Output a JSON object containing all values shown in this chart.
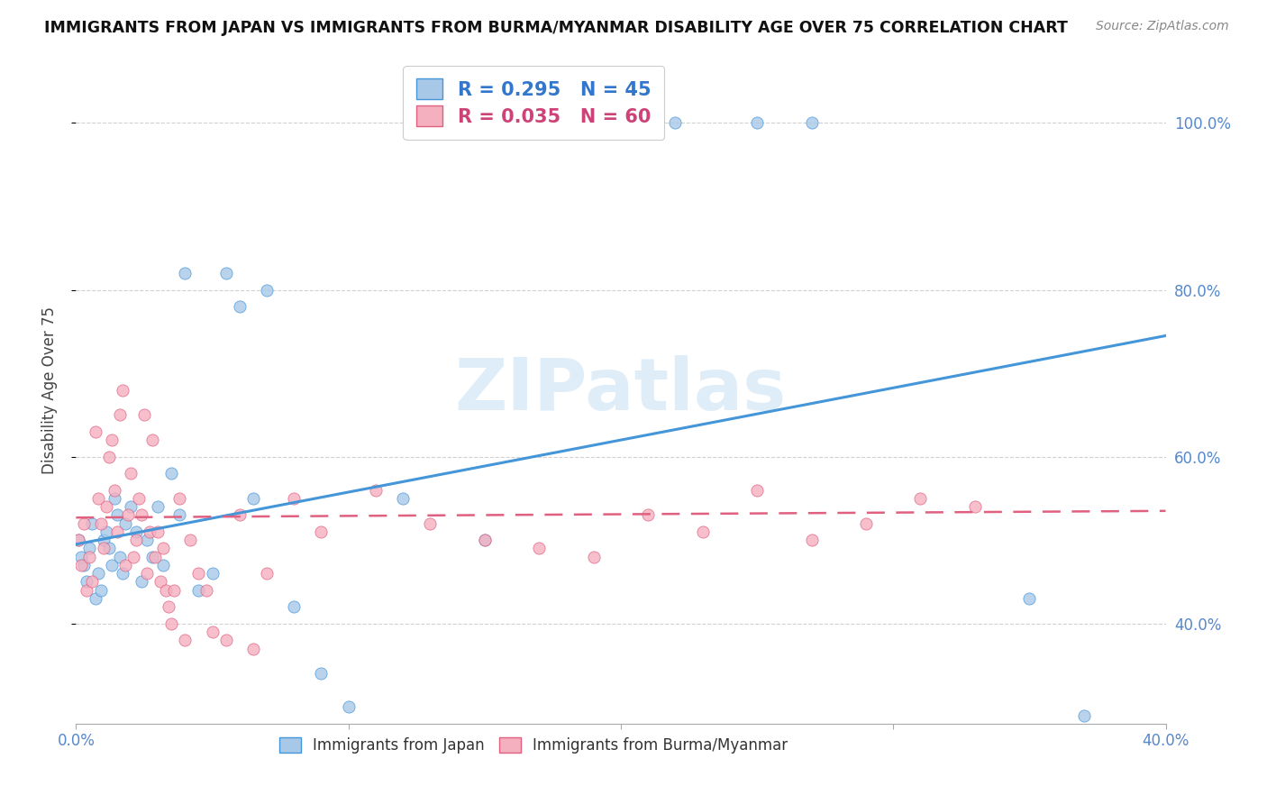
{
  "title": "IMMIGRANTS FROM JAPAN VS IMMIGRANTS FROM BURMA/MYANMAR DISABILITY AGE OVER 75 CORRELATION CHART",
  "source": "Source: ZipAtlas.com",
  "ylabel": "Disability Age Over 75",
  "xlabel_japan": "Immigrants from Japan",
  "xlabel_burma": "Immigrants from Burma/Myanmar",
  "watermark": "ZIPatlas",
  "japan_R": 0.295,
  "japan_N": 45,
  "burma_R": 0.035,
  "burma_N": 60,
  "xlim": [
    0.0,
    0.4
  ],
  "ylim": [
    0.28,
    1.08
  ],
  "japan_color": "#a8c8e8",
  "japan_line_color": "#4496d8",
  "burma_color": "#f5b0c0",
  "burma_line_color": "#e06080",
  "grid_color": "#cccccc",
  "japan_points_x": [
    0.001,
    0.002,
    0.003,
    0.004,
    0.005,
    0.006,
    0.007,
    0.008,
    0.009,
    0.01,
    0.011,
    0.012,
    0.013,
    0.014,
    0.015,
    0.016,
    0.017,
    0.018,
    0.02,
    0.022,
    0.024,
    0.026,
    0.028,
    0.03,
    0.032,
    0.035,
    0.038,
    0.04,
    0.045,
    0.05,
    0.055,
    0.06,
    0.065,
    0.07,
    0.08,
    0.09,
    0.1,
    0.12,
    0.15,
    0.2,
    0.22,
    0.25,
    0.27,
    0.35,
    0.37
  ],
  "japan_points_y": [
    0.5,
    0.48,
    0.47,
    0.45,
    0.49,
    0.52,
    0.43,
    0.46,
    0.44,
    0.5,
    0.51,
    0.49,
    0.47,
    0.55,
    0.53,
    0.48,
    0.46,
    0.52,
    0.54,
    0.51,
    0.45,
    0.5,
    0.48,
    0.54,
    0.47,
    0.58,
    0.53,
    0.82,
    0.44,
    0.46,
    0.82,
    0.78,
    0.55,
    0.8,
    0.42,
    0.34,
    0.3,
    0.55,
    0.5,
    1.0,
    1.0,
    1.0,
    1.0,
    0.43,
    0.29
  ],
  "burma_points_x": [
    0.001,
    0.002,
    0.003,
    0.004,
    0.005,
    0.006,
    0.007,
    0.008,
    0.009,
    0.01,
    0.011,
    0.012,
    0.013,
    0.014,
    0.015,
    0.016,
    0.017,
    0.018,
    0.019,
    0.02,
    0.021,
    0.022,
    0.023,
    0.024,
    0.025,
    0.026,
    0.027,
    0.028,
    0.029,
    0.03,
    0.031,
    0.032,
    0.033,
    0.034,
    0.035,
    0.036,
    0.038,
    0.04,
    0.042,
    0.045,
    0.048,
    0.05,
    0.055,
    0.06,
    0.065,
    0.07,
    0.08,
    0.09,
    0.11,
    0.13,
    0.15,
    0.17,
    0.19,
    0.21,
    0.23,
    0.25,
    0.27,
    0.29,
    0.31,
    0.33
  ],
  "burma_points_y": [
    0.5,
    0.47,
    0.52,
    0.44,
    0.48,
    0.45,
    0.63,
    0.55,
    0.52,
    0.49,
    0.54,
    0.6,
    0.62,
    0.56,
    0.51,
    0.65,
    0.68,
    0.47,
    0.53,
    0.58,
    0.48,
    0.5,
    0.55,
    0.53,
    0.65,
    0.46,
    0.51,
    0.62,
    0.48,
    0.51,
    0.45,
    0.49,
    0.44,
    0.42,
    0.4,
    0.44,
    0.55,
    0.38,
    0.5,
    0.46,
    0.44,
    0.39,
    0.38,
    0.53,
    0.37,
    0.46,
    0.55,
    0.51,
    0.56,
    0.52,
    0.5,
    0.49,
    0.48,
    0.53,
    0.51,
    0.56,
    0.5,
    0.52,
    0.55,
    0.54
  ],
  "ytick_labels": [
    "40.0%",
    "60.0%",
    "80.0%",
    "100.0%"
  ],
  "ytick_values": [
    0.4,
    0.6,
    0.8,
    1.0
  ],
  "xtick_labels": [
    "0.0%",
    "40.0%"
  ],
  "xtick_values": [
    0.0,
    0.1,
    0.2,
    0.3,
    0.4
  ],
  "japan_line_y0": 0.495,
  "japan_line_y1": 0.745,
  "burma_line_y0": 0.527,
  "burma_line_y1": 0.535
}
